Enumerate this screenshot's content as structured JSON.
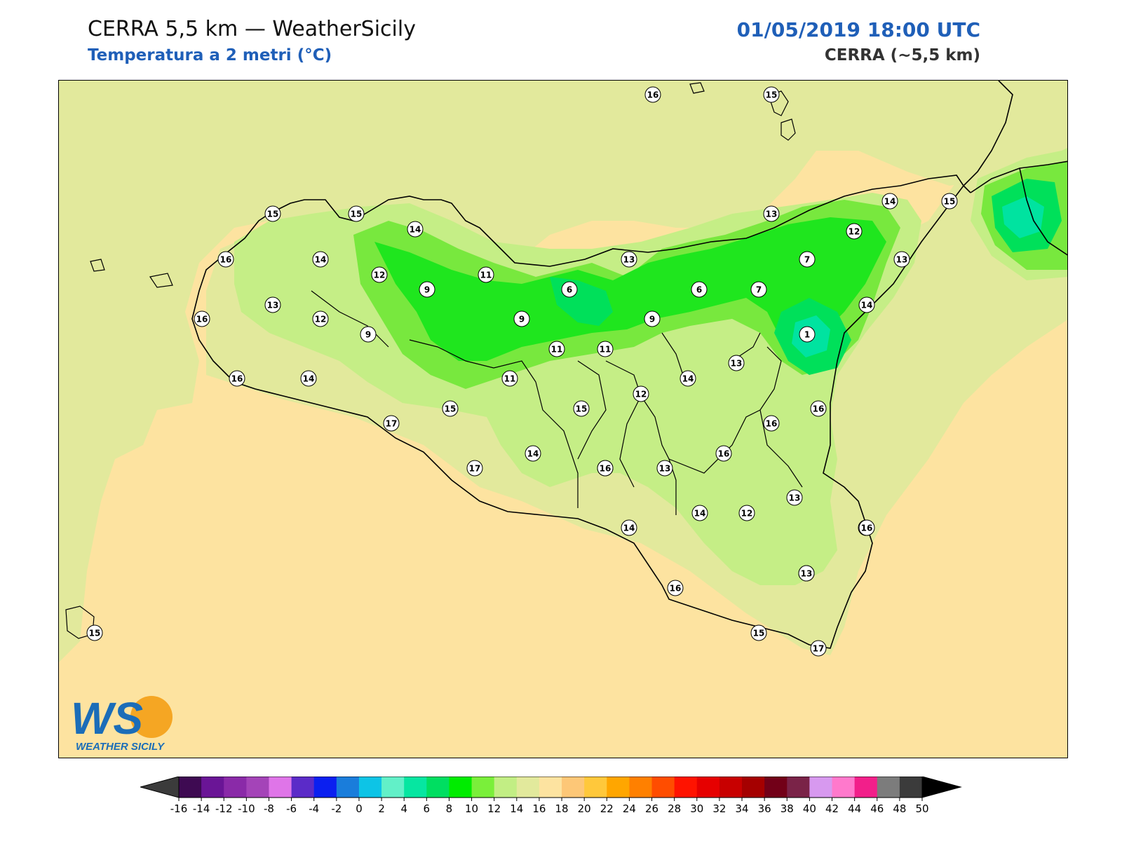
{
  "header": {
    "title": "CERRA 5,5 km — WeatherSicily",
    "subtitle": "Temperatura a 2 metri (°C)",
    "datetime": "01/05/2019 18:00 UTC",
    "model": "CERRA (~5,5 km)"
  },
  "logo": {
    "text": "WEATHER SICILY",
    "mark": "WS"
  },
  "colors": {
    "sea_warm": "#fde3a0",
    "land_base": "#e2e99c",
    "band_14": "#c5ee86",
    "band_12": "#78e83e",
    "band_10": "#1fe61e",
    "band_8": "#00e05a",
    "band_6": "#00e3a0",
    "border": "#000000"
  },
  "colorbar": {
    "ticks": [
      "-16",
      "-14",
      "-12",
      "-10",
      "-8",
      "-6",
      "-4",
      "-2",
      "0",
      "2",
      "4",
      "6",
      "8",
      "10",
      "12",
      "14",
      "16",
      "18",
      "20",
      "22",
      "24",
      "26",
      "28",
      "30",
      "32",
      "34",
      "36",
      "38",
      "40",
      "42",
      "44",
      "46",
      "48",
      "50"
    ],
    "colors": [
      "#3e0a52",
      "#6a1596",
      "#8a2aa8",
      "#a444b8",
      "#df75e8",
      "#5b2bc8",
      "#0b1ff0",
      "#1a7ddb",
      "#0dc4e6",
      "#62f0c8",
      "#06e6a1",
      "#00de61",
      "#00ec00",
      "#7aef3a",
      "#c2ee84",
      "#e2e99c",
      "#fde3a0",
      "#fdc777",
      "#ffc83b",
      "#ffa600",
      "#ff8000",
      "#ff4d00",
      "#ff1300",
      "#e60000",
      "#c80000",
      "#a50000",
      "#720018",
      "#7a2348",
      "#d799ef",
      "#ff79cc",
      "#f21f8a",
      "#7c7c7c",
      "#3b3b3b"
    ]
  },
  "station_labels": [
    "16",
    "15",
    "15",
    "15",
    "14",
    "16",
    "14",
    "12",
    "11",
    "13",
    "15",
    "14",
    "12",
    "13",
    "9",
    "6",
    "6",
    "7",
    "7",
    "13",
    "13",
    "16",
    "12",
    "9",
    "9",
    "9",
    "1",
    "14",
    "11",
    "11",
    "14",
    "13",
    "11",
    "16",
    "14",
    "12",
    "15",
    "16",
    "16",
    "16",
    "17",
    "15",
    "17",
    "14",
    "16",
    "13",
    "16",
    "14",
    "12",
    "13",
    "16",
    "14",
    "16",
    "13",
    "16",
    "13",
    "15",
    "17",
    "15"
  ]
}
